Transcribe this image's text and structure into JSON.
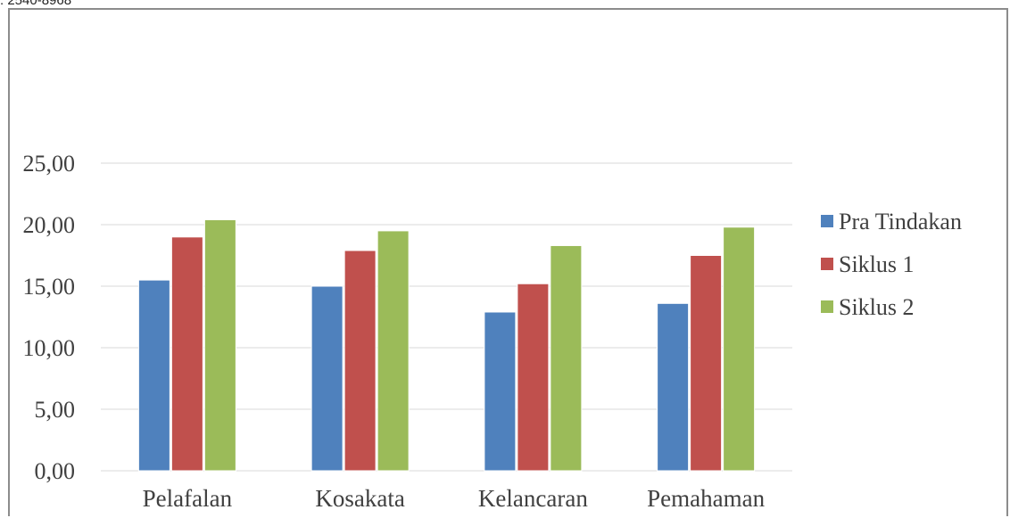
{
  "header_fragment": ": 2540-8968",
  "chart_data": {
    "type": "bar",
    "title": "",
    "xlabel": "",
    "ylabel": "",
    "categories": [
      "Pelafalan",
      "Kosakata",
      "Kelancaran",
      "Pemahaman"
    ],
    "series": [
      {
        "name": "Pra Tindakan",
        "color": "#4f81bd",
        "values": [
          15.5,
          15.0,
          12.9,
          13.6
        ]
      },
      {
        "name": "Siklus 1",
        "color": "#c0504d",
        "values": [
          19.0,
          17.9,
          15.2,
          17.5
        ]
      },
      {
        "name": "Siklus 2",
        "color": "#9bbb59",
        "values": [
          20.4,
          19.5,
          18.3,
          19.8
        ]
      }
    ],
    "ylim": [
      0,
      25
    ],
    "yticks": [
      "0,00",
      "5,00",
      "10,00",
      "15,00",
      "20,00",
      "25,00"
    ],
    "grid": true,
    "legend_position": "right"
  }
}
